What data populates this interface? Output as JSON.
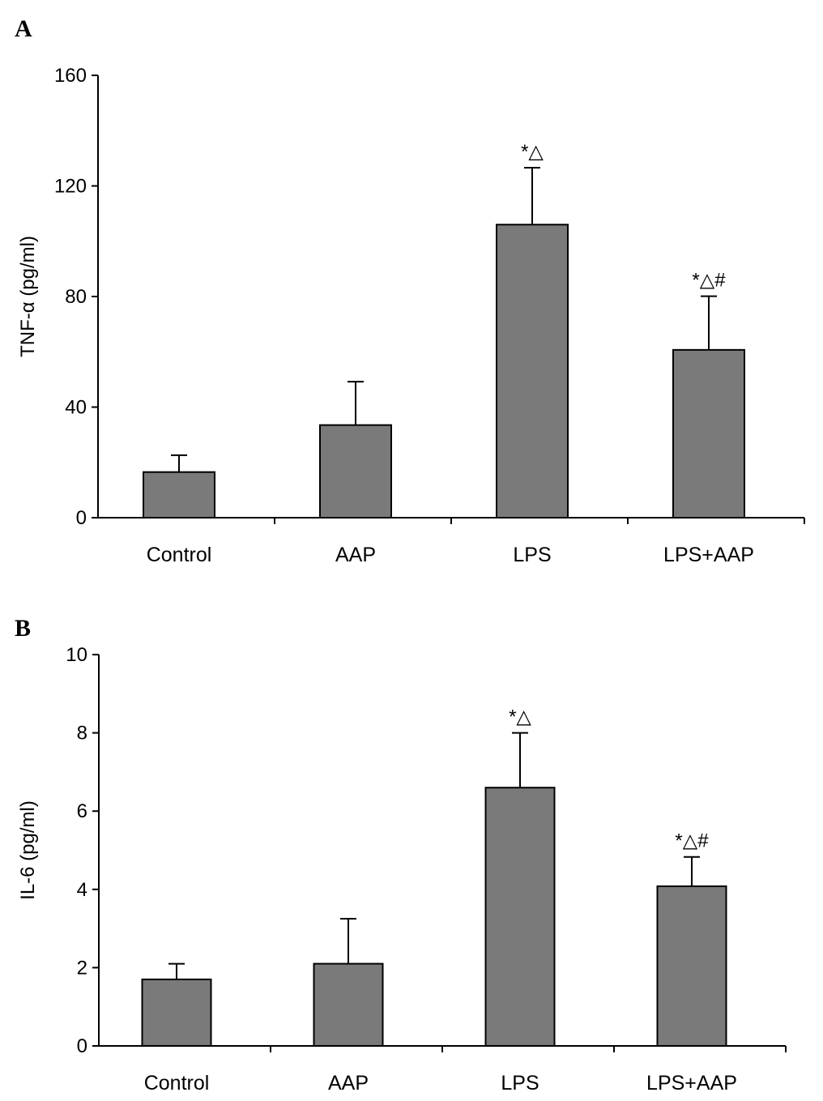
{
  "chart_data": [
    {
      "type": "bar",
      "panel_label": "A",
      "categories": [
        "Control",
        "AAP",
        "LPS",
        "LPS+AAP"
      ],
      "values": [
        16.5,
        33.5,
        106,
        60.7
      ],
      "error_upper": [
        22.6,
        49.2,
        126.6,
        80.1
      ],
      "annotations": [
        "",
        "",
        "*△",
        "*△#"
      ],
      "ylabel": "TNF-α (pg/ml)",
      "xlabel": "",
      "ylim": [
        0,
        160
      ],
      "yticks": [
        "0",
        "40",
        "80",
        "120",
        "160"
      ],
      "grid": false,
      "bar_color": "#7a7a7a"
    },
    {
      "type": "bar",
      "panel_label": "B",
      "categories": [
        "Control",
        "AAP",
        "LPS",
        "LPS+AAP"
      ],
      "values": [
        1.7,
        2.1,
        6.6,
        4.08
      ],
      "error_upper": [
        2.1,
        3.25,
        8.0,
        4.83
      ],
      "annotations": [
        "",
        "",
        "*△",
        "*△#"
      ],
      "ylabel": "IL-6 (pg/ml)",
      "xlabel": "",
      "ylim": [
        0,
        10
      ],
      "yticks": [
        "0",
        "2",
        "4",
        "6",
        "8",
        "10"
      ],
      "grid": false,
      "bar_color": "#7a7a7a"
    }
  ]
}
